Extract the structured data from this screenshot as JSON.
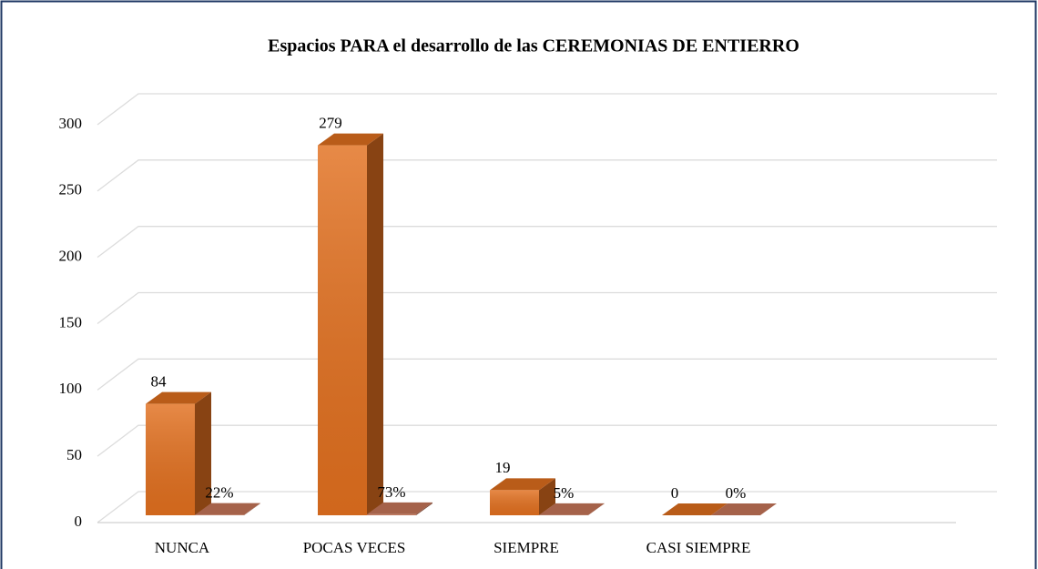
{
  "chart_data": {
    "type": "bar3d",
    "title": "Espacios PARA el desarrollo de las CEREMONIAS DE ENTIERRO",
    "categories": [
      "NUNCA",
      "POCAS VECES",
      "SIEMPRE",
      "CASI SIEMPRE"
    ],
    "series": [
      {
        "color": "#e2701f",
        "values": [
          84,
          279,
          19,
          0
        ]
      },
      {
        "color": "#c9775a",
        "values": [
          0.22,
          0.73,
          0.05,
          0
        ],
        "value_labels": [
          "22%",
          "73%",
          "5%",
          "0%"
        ]
      }
    ],
    "ylim": [
      0,
      300
    ],
    "yticks": [
      0,
      50,
      100,
      150,
      200,
      250,
      300
    ],
    "grid": true
  }
}
